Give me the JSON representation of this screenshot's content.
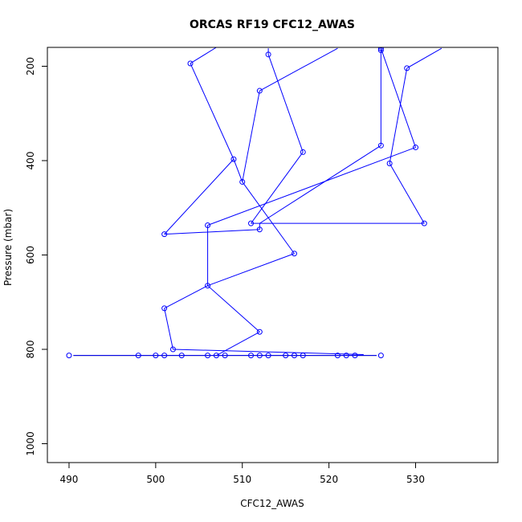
{
  "chart_data": {
    "type": "scatter",
    "title": "ORCAS RF19 CFC12_AWAS",
    "xlabel": "CFC12_AWAS",
    "ylabel": "Pressure (mbar)",
    "xlim": [
      487.5,
      539.5
    ],
    "ylim": [
      1040,
      160
    ],
    "y_reversed": true,
    "x_ticks": [
      490,
      500,
      510,
      520,
      530
    ],
    "y_ticks": [
      200,
      400,
      600,
      800,
      1000
    ],
    "grid": false,
    "reference_line": {
      "x": [
        490.5,
        525.5
      ],
      "y": [
        813,
        813
      ],
      "color": "#000000"
    },
    "series": [
      {
        "color": "#0000ff",
        "marker": "open-circle",
        "connected": true,
        "points": [
          [
            490,
            813
          ],
          [
            498,
            813
          ],
          [
            500,
            813
          ],
          [
            501,
            813
          ],
          [
            501,
            813
          ],
          [
            503,
            813
          ],
          [
            506,
            813
          ],
          [
            507,
            813
          ],
          [
            507,
            813
          ],
          [
            508,
            813
          ],
          [
            511,
            813
          ],
          [
            511,
            813
          ],
          [
            512,
            813
          ],
          [
            513,
            813
          ],
          [
            515,
            813
          ],
          [
            516,
            813
          ],
          [
            517,
            813
          ],
          [
            521,
            813
          ],
          [
            522,
            813
          ],
          [
            522,
            813
          ],
          [
            523,
            813
          ],
          [
            523,
            813
          ],
          [
            526,
            813
          ],
          [
            502,
            800
          ],
          [
            512,
            763
          ],
          [
            506,
            665
          ],
          [
            501,
            713
          ],
          [
            506,
            665
          ],
          [
            516,
            597
          ],
          [
            510,
            445
          ],
          [
            509,
            397
          ],
          [
            506,
            537
          ],
          [
            526,
            368
          ],
          [
            511,
            533
          ],
          [
            531,
            533
          ],
          [
            527,
            406
          ],
          [
            529,
            204
          ],
          [
            533,
            162
          ],
          [
            504,
            194
          ],
          [
            507,
            160
          ]
        ],
        "segments": [
          [
            [
              490.5,
              813
            ],
            [
              525.5,
              813
            ]
          ],
          [
            [
              502,
              800
            ],
            [
              524,
              811
            ]
          ],
          [
            [
              507,
              813
            ],
            [
              512,
              763
            ]
          ],
          [
            [
              512,
              763
            ],
            [
              506,
              665
            ]
          ],
          [
            [
              506,
              665
            ],
            [
              501,
              713
            ]
          ],
          [
            [
              501,
              713
            ],
            [
              502,
              800
            ]
          ],
          [
            [
              506,
              665
            ],
            [
              516,
              597
            ]
          ],
          [
            [
              506,
              665
            ],
            [
              506,
              537
            ]
          ],
          [
            [
              516,
              597
            ],
            [
              510,
              445
            ]
          ],
          [
            [
              510,
              445
            ],
            [
              509,
              397
            ]
          ],
          [
            [
              509,
              397
            ],
            [
              501,
              556
            ]
          ],
          [
            [
              501,
              556
            ],
            [
              512,
              546
            ]
          ],
          [
            [
              512,
              546
            ],
            [
              512,
              533
            ]
          ],
          [
            [
              506,
              537
            ],
            [
              530,
              372
            ]
          ],
          [
            [
              512,
              533
            ],
            [
              526,
              368
            ]
          ],
          [
            [
              511,
              533
            ],
            [
              531,
              533
            ]
          ],
          [
            [
              531,
              533
            ],
            [
              527,
              406
            ]
          ],
          [
            [
              527,
              406
            ],
            [
              529,
              204
            ]
          ],
          [
            [
              529,
              204
            ],
            [
              533,
              162
            ]
          ],
          [
            [
              526,
              368
            ],
            [
              526,
              162
            ]
          ],
          [
            [
              530,
              372
            ],
            [
              526,
              162
            ]
          ],
          [
            [
              511,
              533
            ],
            [
              517,
              382
            ]
          ],
          [
            [
              517,
              382
            ],
            [
              513,
              175
            ]
          ],
          [
            [
              513,
              175
            ],
            [
              513,
              162
            ]
          ],
          [
            [
              510,
              445
            ],
            [
              512,
              252
            ]
          ],
          [
            [
              512,
              252
            ],
            [
              521,
              162
            ]
          ],
          [
            [
              509,
              397
            ],
            [
              504,
              194
            ]
          ],
          [
            [
              504,
              194
            ],
            [
              507,
              160
            ]
          ]
        ],
        "markers": [
          [
            490,
            813
          ],
          [
            498,
            813
          ],
          [
            500,
            813
          ],
          [
            501,
            813
          ],
          [
            503,
            813
          ],
          [
            506,
            813
          ],
          [
            507,
            813
          ],
          [
            508,
            813
          ],
          [
            511,
            813
          ],
          [
            512,
            813
          ],
          [
            513,
            813
          ],
          [
            515,
            813
          ],
          [
            516,
            813
          ],
          [
            517,
            813
          ],
          [
            521,
            813
          ],
          [
            522,
            813
          ],
          [
            523,
            813
          ],
          [
            526,
            813
          ],
          [
            502,
            800
          ],
          [
            512,
            763
          ],
          [
            501,
            713
          ],
          [
            506,
            665
          ],
          [
            516,
            597
          ],
          [
            501,
            556
          ],
          [
            512,
            546
          ],
          [
            506,
            537
          ],
          [
            511,
            533
          ],
          [
            531,
            533
          ],
          [
            510,
            445
          ],
          [
            527,
            406
          ],
          [
            509,
            397
          ],
          [
            517,
            382
          ],
          [
            530,
            372
          ],
          [
            526,
            368
          ],
          [
            512,
            252
          ],
          [
            529,
            204
          ],
          [
            504,
            194
          ],
          [
            513,
            175
          ],
          [
            526,
            162
          ],
          [
            526,
            166
          ]
        ]
      }
    ]
  }
}
